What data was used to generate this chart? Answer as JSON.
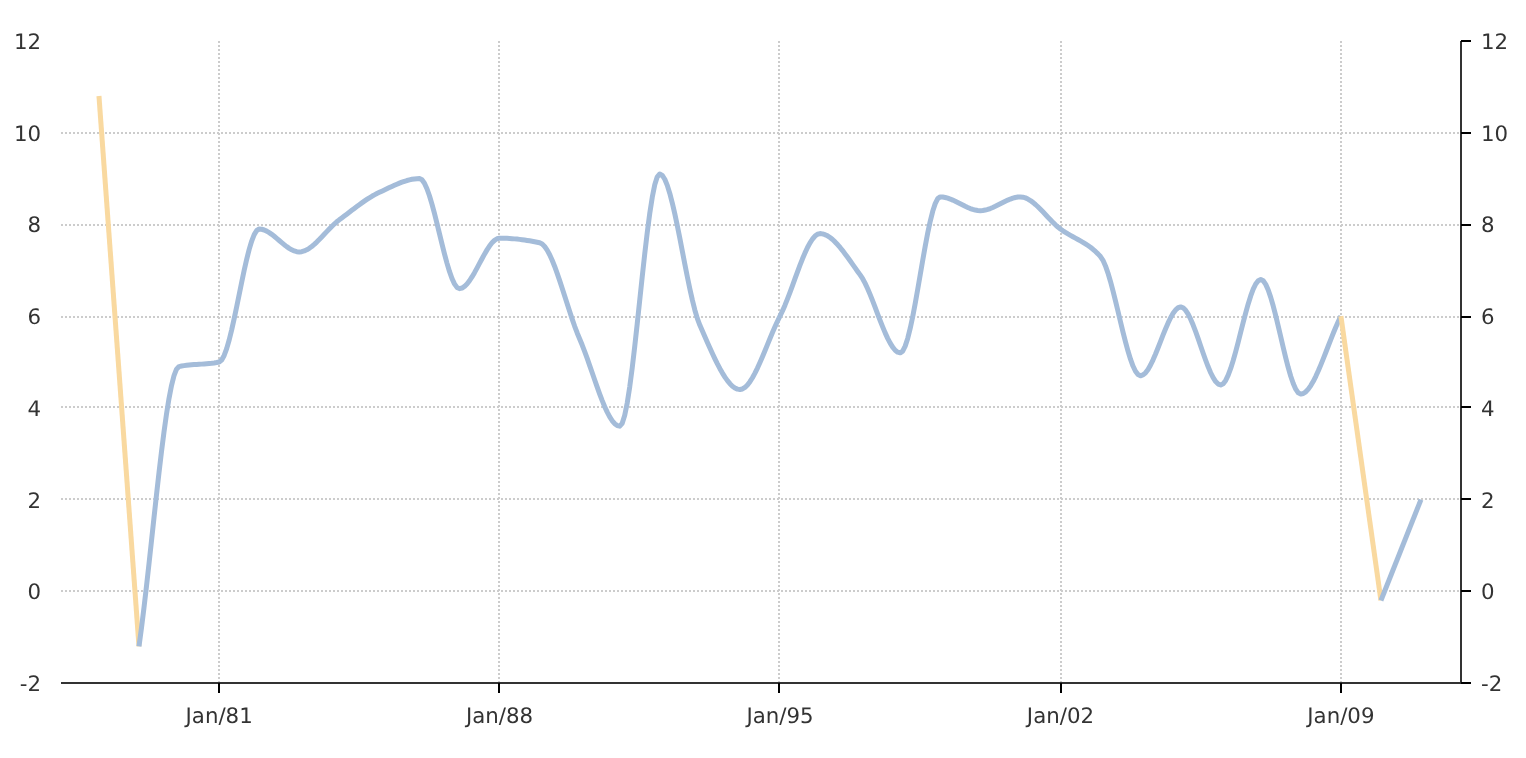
{
  "chart_data": {
    "type": "line",
    "xlim": [
      "1977-01-20",
      "2012-01-01"
    ],
    "xticks": [
      {
        "value": "1981-01-01",
        "label": "Jan/81"
      },
      {
        "value": "1988-01-01",
        "label": "Jan/88"
      },
      {
        "value": "1995-01-01",
        "label": "Jan/95"
      },
      {
        "value": "2002-01-01",
        "label": "Jan/02"
      },
      {
        "value": "2009-01-01",
        "label": "Jan/09"
      }
    ],
    "ylim": [
      -2,
      12
    ],
    "yticks": [
      -2,
      0,
      2,
      4,
      6,
      8,
      10,
      12
    ],
    "y2lim": [
      -2,
      12
    ],
    "y2ticks": [
      -2,
      0,
      2,
      4,
      6,
      8,
      10,
      12
    ],
    "grid": true,
    "line_style": "solid",
    "series": [
      {
        "color": "#f9d9a0",
        "x": [
          "1978-01-01",
          "1979-01-01"
        ],
        "values": [
          10.8,
          -1.2
        ]
      },
      {
        "color": "#a4bcd9",
        "x": [
          "1979-01-01",
          "1980-01-01",
          "1981-01-01",
          "1982-01-01",
          "1983-01-01",
          "1984-01-01",
          "1985-01-01",
          "1986-01-01",
          "1987-01-01",
          "1988-01-01",
          "1989-01-01",
          "1990-01-01",
          "1991-01-01",
          "1992-01-01",
          "1993-01-01",
          "1994-01-01",
          "1995-01-01",
          "1996-01-01",
          "1997-01-01",
          "1998-01-01",
          "1999-01-01",
          "2000-01-01",
          "2001-01-01",
          "2002-01-01",
          "2003-01-01",
          "2004-01-01",
          "2005-01-01",
          "2006-01-01",
          "2007-01-01",
          "2008-01-01",
          "2009-01-01"
        ],
        "values": [
          -1.2,
          4.9,
          5.0,
          7.9,
          7.4,
          8.1,
          8.7,
          9.0,
          6.6,
          7.7,
          7.6,
          5.5,
          3.6,
          9.1,
          5.8,
          4.4,
          6.0,
          7.8,
          6.9,
          5.2,
          8.6,
          8.3,
          8.6,
          7.9,
          7.3,
          4.7,
          6.2,
          4.5,
          6.8,
          4.3,
          6.0
        ]
      },
      {
        "color": "#f9d9a0",
        "x": [
          "2009-01-01",
          "2010-01-01"
        ],
        "values": [
          6.0,
          -0.2
        ]
      },
      {
        "color": "#a4bcd9",
        "x": [
          "2010-01-01",
          "2011-01-01"
        ],
        "values": [
          -0.2,
          2.0
        ]
      }
    ]
  }
}
